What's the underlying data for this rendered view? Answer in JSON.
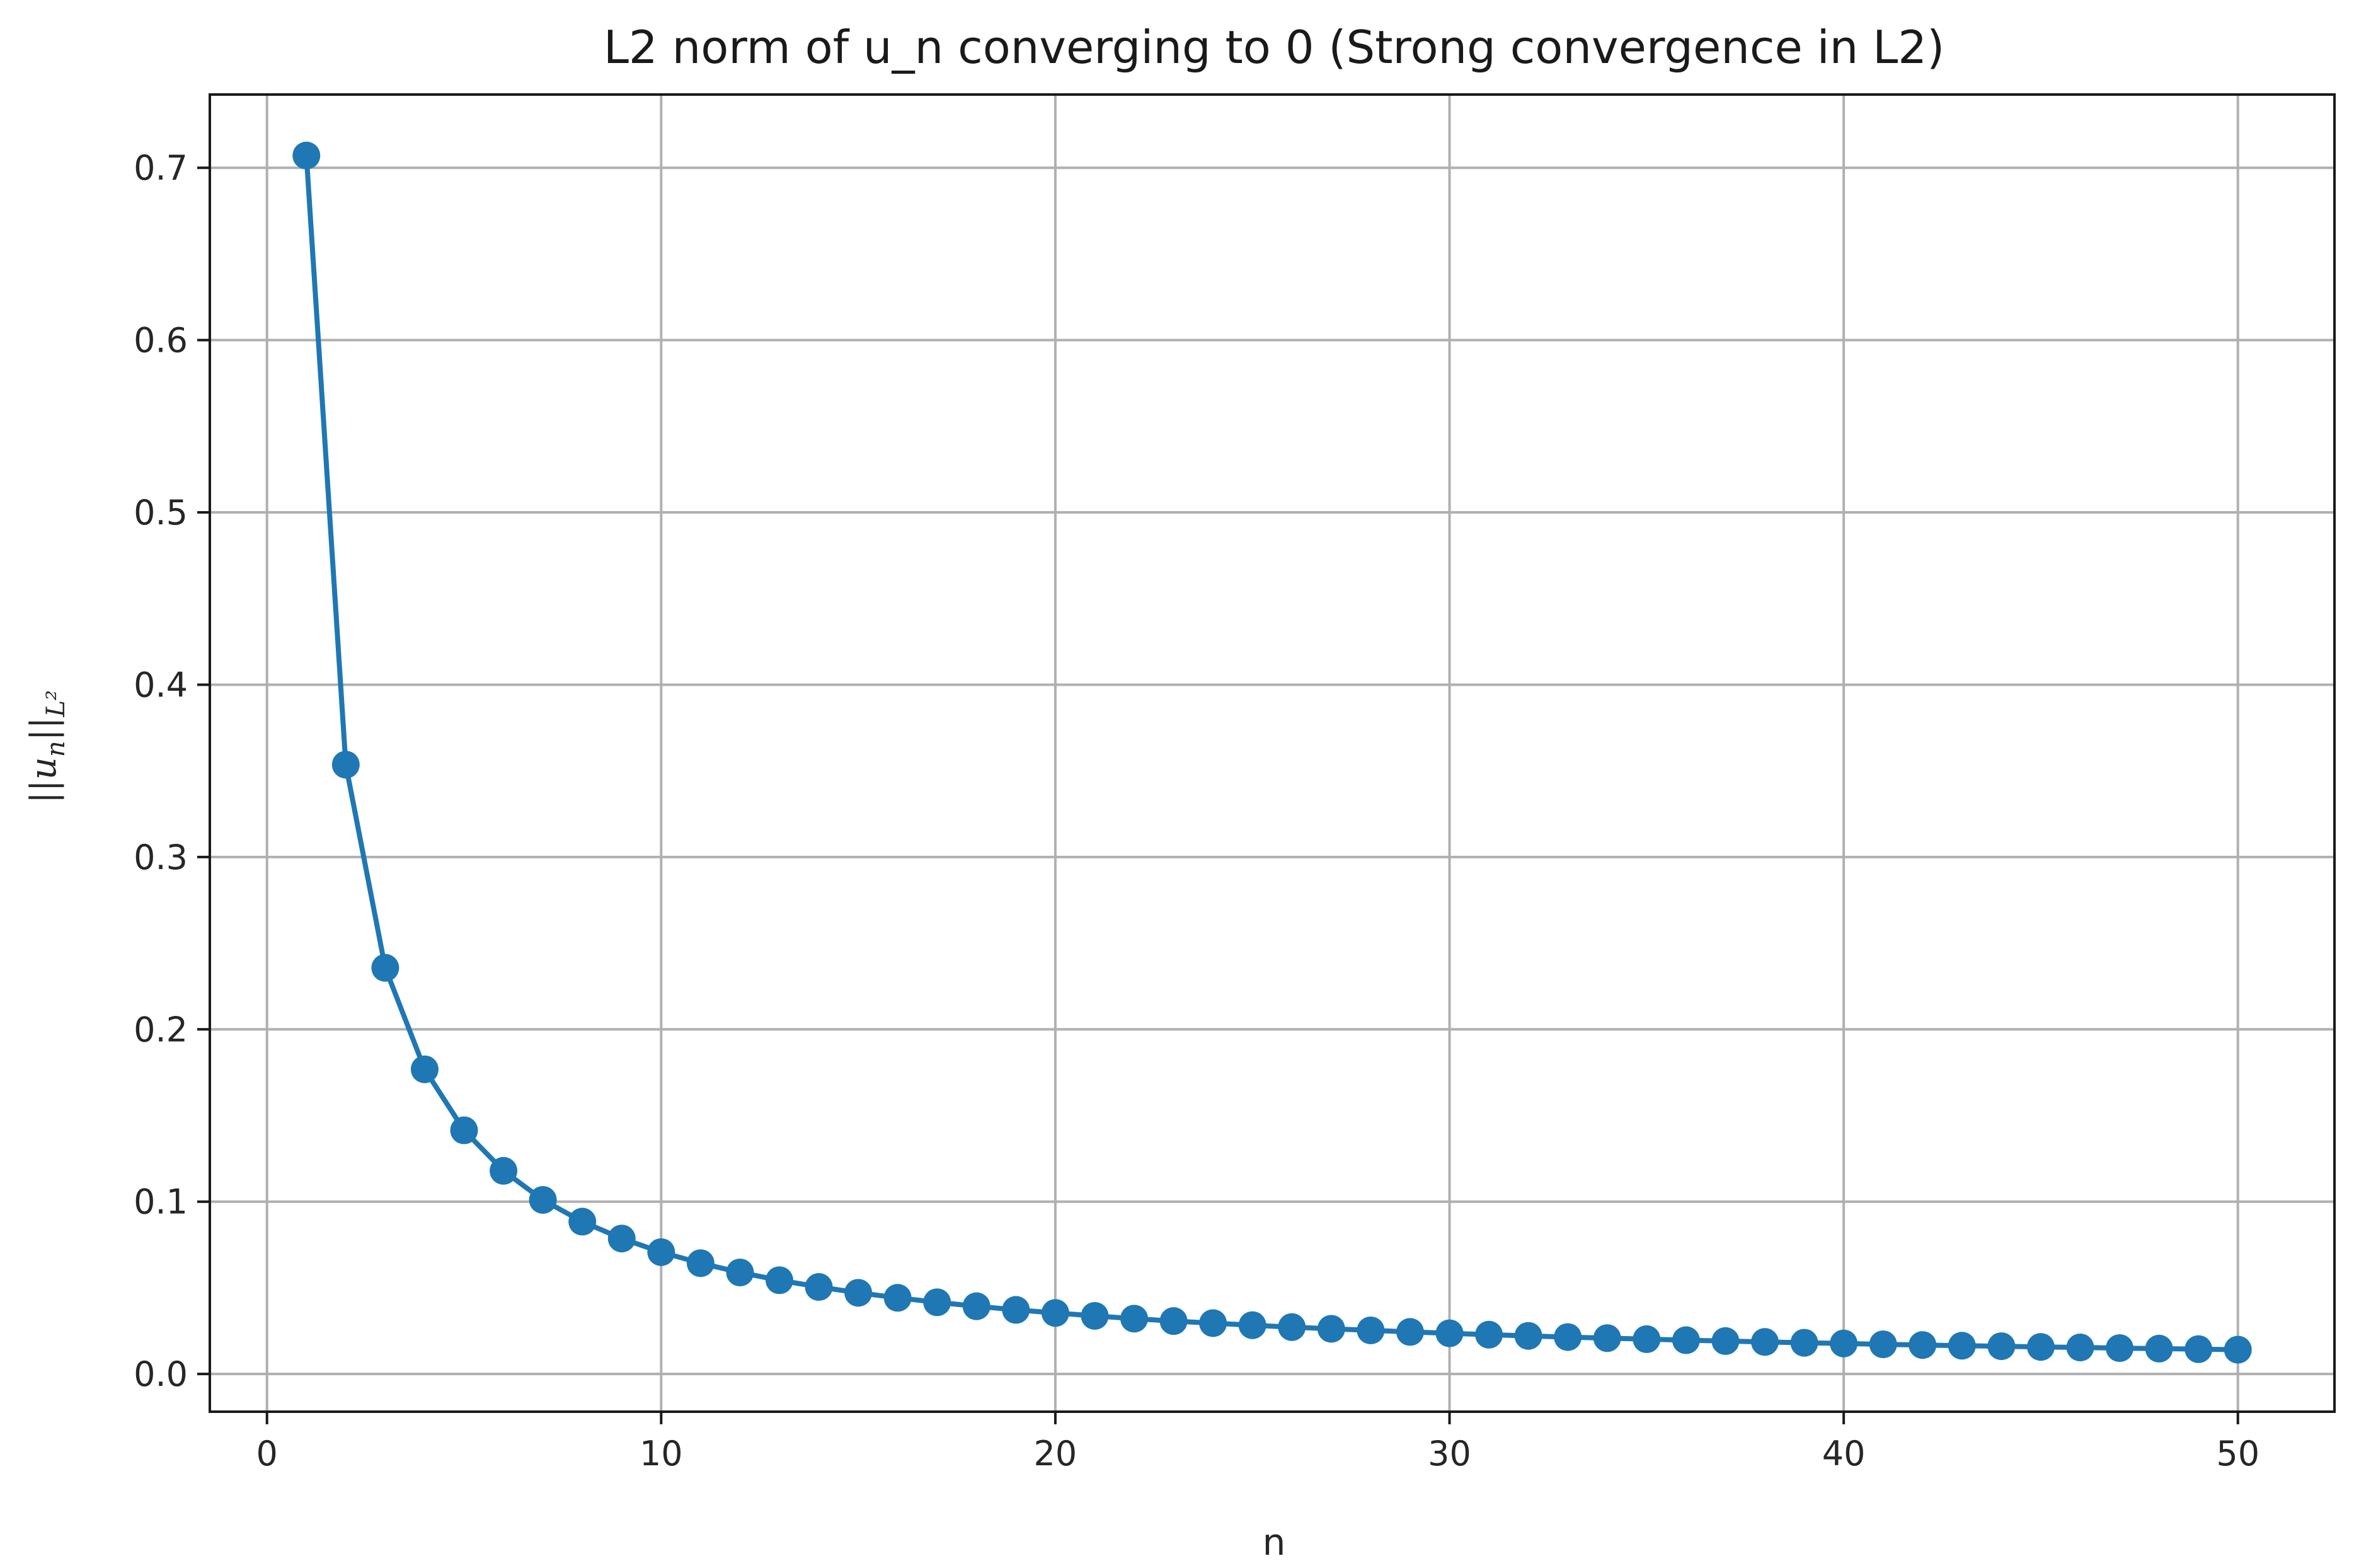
{
  "chart_data": {
    "type": "line",
    "title": "L2 norm of u_n converging to 0 (Strong convergence in L2)",
    "xlabel": "n",
    "ylabel": {
      "prefix": "||",
      "var": "u",
      "var_sub": "n",
      "suffix": "||",
      "norm_sub": "L²"
    },
    "xlim": [
      -1.45,
      52.45
    ],
    "ylim": [
      -0.0219,
      0.7425
    ],
    "x_ticks": [
      0,
      10,
      20,
      30,
      40,
      50
    ],
    "y_ticks": [
      0.0,
      0.1,
      0.2,
      0.3,
      0.4,
      0.5,
      0.6,
      0.7
    ],
    "x_tick_labels": [
      "0",
      "10",
      "20",
      "30",
      "40",
      "50"
    ],
    "y_tick_labels": [
      "0.0",
      "0.1",
      "0.2",
      "0.3",
      "0.4",
      "0.5",
      "0.6",
      "0.7"
    ],
    "grid": true,
    "legend": "none",
    "marker": "circle",
    "color": "#1f77b4",
    "series": [
      {
        "x": [
          1,
          2,
          3,
          4,
          5,
          6,
          7,
          8,
          9,
          10,
          11,
          12,
          13,
          14,
          15,
          16,
          17,
          18,
          19,
          20,
          21,
          22,
          23,
          24,
          25,
          26,
          27,
          28,
          29,
          30,
          31,
          32,
          33,
          34,
          35,
          36,
          37,
          38,
          39,
          40,
          41,
          42,
          43,
          44,
          45,
          46,
          47,
          48,
          49,
          50
        ],
        "values": [
          0.7071,
          0.3536,
          0.2357,
          0.1768,
          0.1414,
          0.1179,
          0.101,
          0.0884,
          0.0786,
          0.0707,
          0.0643,
          0.0589,
          0.0544,
          0.0505,
          0.0471,
          0.0442,
          0.0416,
          0.0393,
          0.0372,
          0.0354,
          0.0337,
          0.0321,
          0.0307,
          0.0295,
          0.0283,
          0.0272,
          0.0262,
          0.0253,
          0.0244,
          0.0236,
          0.0228,
          0.0221,
          0.0214,
          0.0208,
          0.0202,
          0.0196,
          0.0191,
          0.0186,
          0.0181,
          0.0177,
          0.0172,
          0.0168,
          0.0164,
          0.0161,
          0.0157,
          0.0154,
          0.015,
          0.0147,
          0.0144,
          0.0141
        ]
      }
    ]
  }
}
